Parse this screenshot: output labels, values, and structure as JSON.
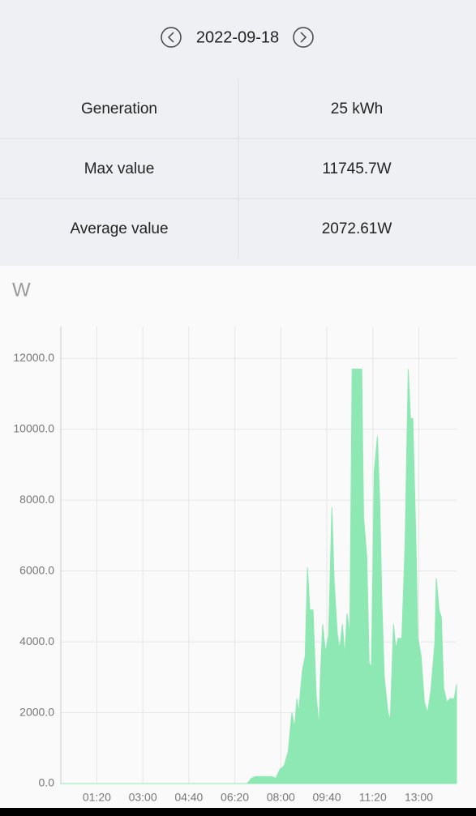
{
  "header": {
    "date": "2022-09-18"
  },
  "table": {
    "rows": [
      [
        "Generation",
        "25 kWh"
      ],
      [
        "Max value",
        "11745.7W"
      ],
      [
        "Average value",
        "2072.61W"
      ]
    ]
  },
  "chart_data": {
    "type": "area",
    "ylabel": "W",
    "color": "#8ee8b4",
    "grid": true,
    "x": [
      0,
      407,
      416,
      425,
      460,
      469,
      478,
      487,
      496,
      504,
      510,
      515,
      519,
      522,
      527,
      533,
      538,
      543,
      550,
      557,
      563,
      566,
      571,
      577,
      584,
      591,
      596,
      603,
      608,
      614,
      619,
      624,
      630,
      635,
      656,
      660,
      667,
      672,
      677,
      683,
      690,
      695,
      700,
      705,
      713,
      718,
      725,
      730,
      735,
      743,
      750,
      757,
      762,
      767,
      774,
      778,
      785,
      792,
      799,
      806,
      815,
      818,
      824,
      829,
      834,
      841,
      848,
      857,
      862
    ],
    "values": [
      0,
      0,
      150,
      200,
      200,
      150,
      400,
      500,
      900,
      2000,
      1600,
      2400,
      2000,
      2500,
      3200,
      3600,
      6100,
      4900,
      4900,
      2500,
      1600,
      3000,
      4500,
      3700,
      4200,
      7800,
      5700,
      4200,
      3800,
      4500,
      3600,
      4800,
      4200,
      11700,
      11700,
      7500,
      6400,
      3400,
      3300,
      8800,
      9800,
      8000,
      5000,
      3000,
      2000,
      1800,
      4500,
      3800,
      4100,
      4100,
      6700,
      11700,
      10300,
      10300,
      6700,
      4100,
      3600,
      2300,
      2000,
      2600,
      4000,
      5800,
      4900,
      4700,
      2700,
      2300,
      2400,
      2400,
      2800
    ],
    "xlim": [
      0,
      862
    ],
    "ylim": [
      0,
      12900
    ],
    "xticks": [
      {
        "value": 80,
        "label": "01:20"
      },
      {
        "value": 180,
        "label": "03:00"
      },
      {
        "value": 280,
        "label": "04:40"
      },
      {
        "value": 380,
        "label": "06:20"
      },
      {
        "value": 480,
        "label": "08:00"
      },
      {
        "value": 580,
        "label": "09:40"
      },
      {
        "value": 680,
        "label": "11:20"
      },
      {
        "value": 780,
        "label": "13:00"
      }
    ],
    "yticks": [
      {
        "value": 0,
        "label": "0.0"
      },
      {
        "value": 2000,
        "label": "2000.0"
      },
      {
        "value": 4000,
        "label": "4000.0"
      },
      {
        "value": 6000,
        "label": "6000.0"
      },
      {
        "value": 8000,
        "label": "8000.0"
      },
      {
        "value": 10000,
        "label": "10000.0"
      },
      {
        "value": 12000,
        "label": "12000.0"
      }
    ]
  }
}
